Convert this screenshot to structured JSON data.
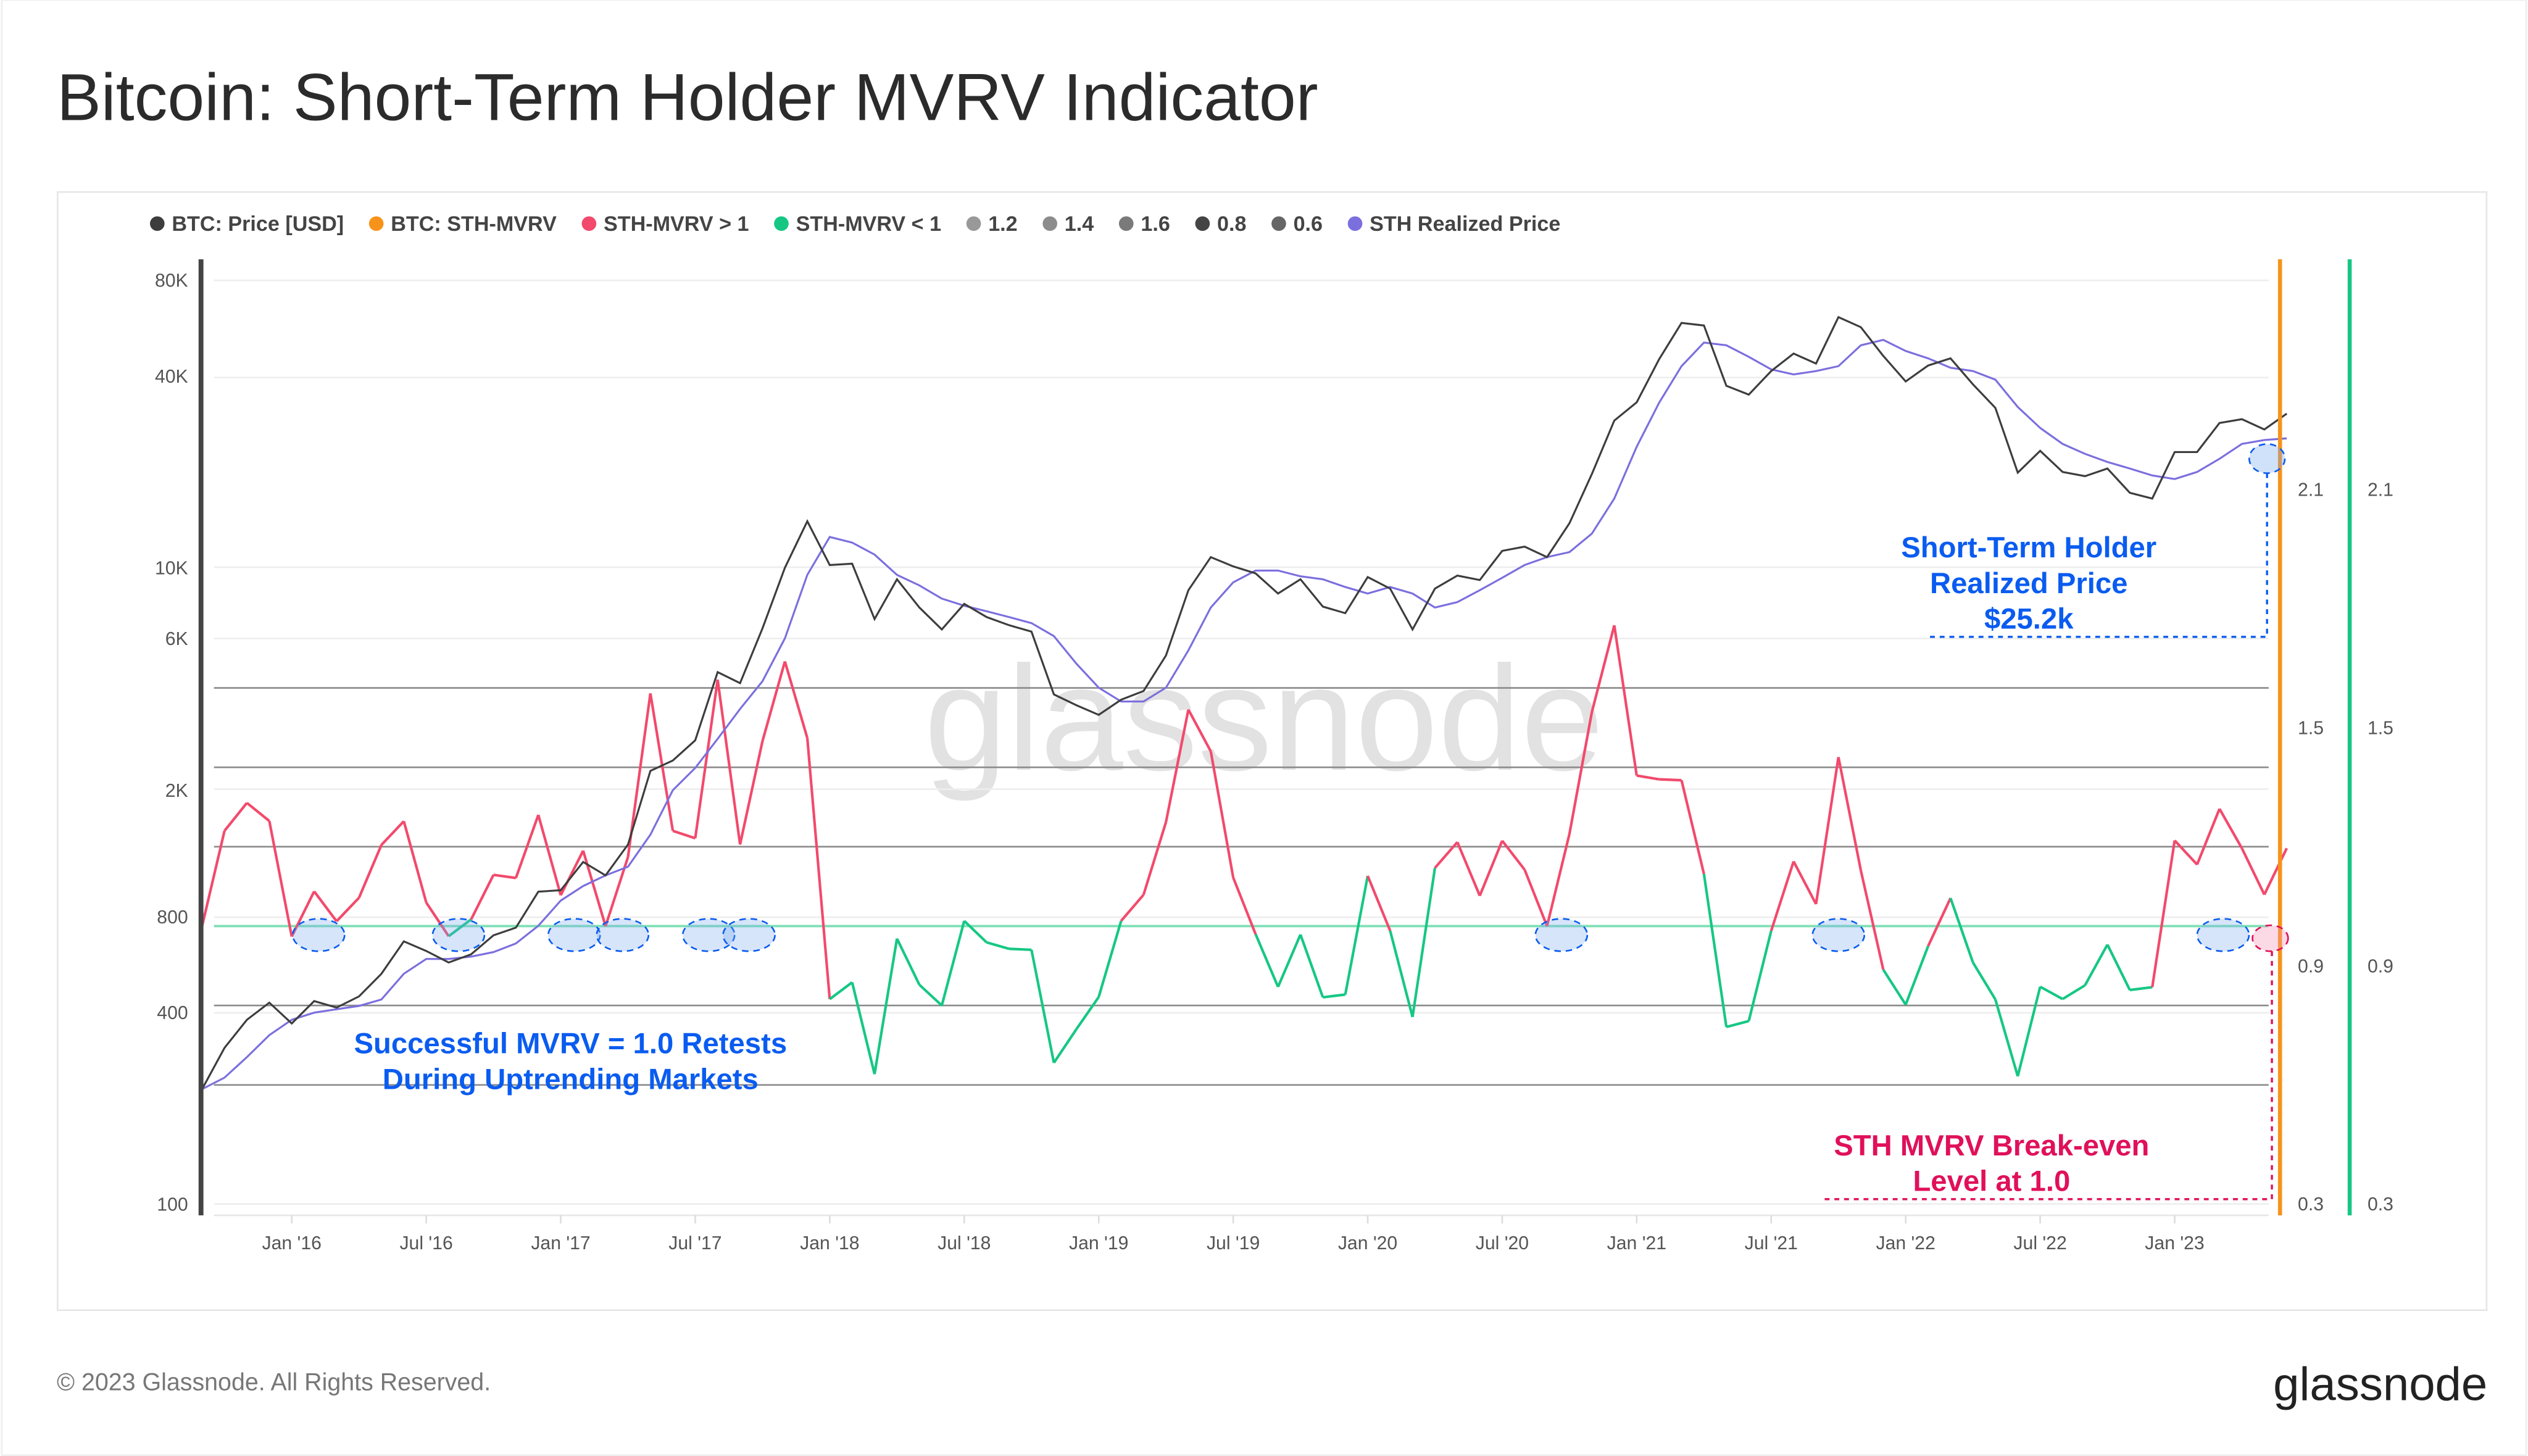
{
  "header": {
    "title": "Bitcoin: Short-Term Holder MVRV Indicator"
  },
  "footer": {
    "copyright": "© 2023 Glassnode. All Rights Reserved.",
    "logo": "glassnode"
  },
  "watermark": "glassnode",
  "colors": {
    "price": "#3d3d3d",
    "sth_mvrv": "#f7931a",
    "above_one": "#f24a6c",
    "below_one": "#16c784",
    "realized": "#7b6fde",
    "annotation_blue": "#0a5cf0",
    "annotation_pink": "#e0105a",
    "grid_dark": "#8a8a8a"
  },
  "legend": [
    {
      "label": "BTC: Price [USD]",
      "color": "#3d3d3d"
    },
    {
      "label": "BTC: STH-MVRV",
      "color": "#f7931a"
    },
    {
      "label": "STH-MVRV > 1",
      "color": "#f24a6c"
    },
    {
      "label": "STH-MVRV < 1",
      "color": "#16c784"
    },
    {
      "label": "1.2",
      "color": "#999999"
    },
    {
      "label": "1.4",
      "color": "#8c8c8c"
    },
    {
      "label": "1.6",
      "color": "#7a7a7a"
    },
    {
      "label": "0.8",
      "color": "#444444"
    },
    {
      "label": "0.6",
      "color": "#666666"
    },
    {
      "label": "STH Realized Price",
      "color": "#7b6fde"
    }
  ],
  "annotations": {
    "realized_line1": "Short-Term Holder",
    "realized_line2": "Realized Price",
    "realized_line3": "$25.2k",
    "retest_line1": "Successful MVRV = 1.0 Retests",
    "retest_line2": "During Uptrending Markets",
    "breakeven_line1": "STH MVRV Break-even",
    "breakeven_line2": "Level at 1.0"
  },
  "chart_data": {
    "type": "line",
    "title": "Bitcoin: Short-Term Holder MVRV Indicator",
    "x_ticks": [
      "Jan '16",
      "Jul '16",
      "Jan '17",
      "Jul '17",
      "Jan '18",
      "Jul '18",
      "Jan '19",
      "Jul '19",
      "Jan '20",
      "Jul '20",
      "Jan '21",
      "Jul '21",
      "Jan '22",
      "Jul '22",
      "Jan '23"
    ],
    "y_left": {
      "scale": "log",
      "range": [
        100,
        80000
      ],
      "ticks": [
        "80K",
        "40K",
        "10K",
        "6K",
        "2K",
        "800",
        "400",
        "100"
      ]
    },
    "y_right": {
      "scale": "linear",
      "range": [
        0.3,
        2.1
      ],
      "ticks": [
        "2.1",
        "1.5",
        "0.9",
        "0.3"
      ]
    },
    "levels": [
      1.6,
      1.4,
      1.2,
      1.0,
      0.8,
      0.6
    ],
    "grid": true,
    "legend_position": "top-left",
    "start_month": "2015-09",
    "series": [
      {
        "name": "BTC: Price [USD]",
        "axis": "left",
        "values": [
          230,
          310,
          380,
          430,
          370,
          435,
          415,
          450,
          530,
          670,
          625,
          575,
          610,
          700,
          740,
          960,
          970,
          1190,
          1080,
          1350,
          2300,
          2480,
          2870,
          4700,
          4340,
          6450,
          10000,
          14000,
          10200,
          10300,
          6900,
          9200,
          7500,
          6400,
          7700,
          7000,
          6600,
          6300,
          4000,
          3700,
          3450,
          3850,
          4100,
          5300,
          8500,
          10800,
          10100,
          9600,
          8300,
          9200,
          7550,
          7200,
          9350,
          8600,
          6400,
          8600,
          9450,
          9150,
          11300,
          11650,
          10800,
          13800,
          19700,
          29000,
          33100,
          45200,
          58800,
          57700,
          37300,
          35000,
          41500,
          47100,
          43800,
          61300,
          57000,
          46300,
          38500,
          43200,
          45500,
          37700,
          31800,
          19900,
          23300,
          20000,
          19400,
          20500,
          17200,
          16500,
          23100,
          23100,
          28500,
          29300,
          27200,
          30500
        ]
      },
      {
        "name": "STH Realized Price",
        "axis": "left",
        "values": [
          230,
          250,
          290,
          340,
          380,
          400,
          410,
          420,
          440,
          530,
          590,
          590,
          600,
          620,
          660,
          750,
          900,
          1000,
          1080,
          1150,
          1450,
          2000,
          2350,
          2900,
          3600,
          4400,
          6000,
          9500,
          12500,
          12000,
          11000,
          9500,
          8800,
          8000,
          7600,
          7300,
          7000,
          6700,
          6100,
          5000,
          4200,
          3800,
          3800,
          4200,
          5500,
          7500,
          9000,
          9800,
          9800,
          9400,
          9200,
          8700,
          8300,
          8700,
          8300,
          7500,
          7800,
          8500,
          9300,
          10200,
          10800,
          11200,
          12800,
          16500,
          24000,
          33000,
          43000,
          51000,
          50000,
          46000,
          42000,
          40500,
          41500,
          43000,
          50000,
          52000,
          48000,
          45500,
          42500,
          41500,
          39000,
          32000,
          27500,
          24500,
          22800,
          21500,
          20500,
          19500,
          19000,
          20000,
          22000,
          24500,
          25200,
          25500
        ]
      },
      {
        "name": "BTC: STH-MVRV",
        "axis": "right",
        "derived": "price / STH realized price"
      }
    ]
  }
}
